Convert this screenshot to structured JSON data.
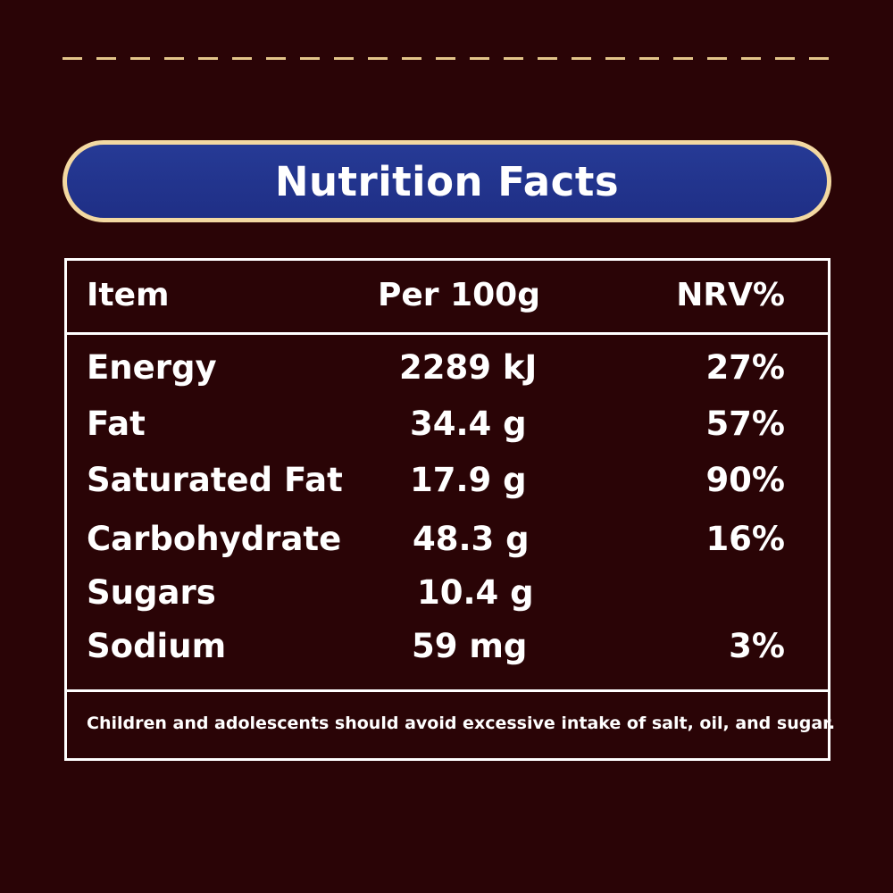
{
  "title": "Nutrition Facts",
  "table": {
    "headers": {
      "item": "Item",
      "per": "Per 100g",
      "nrv": "NRV%"
    },
    "rows": [
      {
        "item": "Energy",
        "per": "2289 kJ",
        "nrv": "27%"
      },
      {
        "item": "Fat",
        "per": "34.4 g",
        "nrv": "57%"
      },
      {
        "item": "Saturated Fat",
        "per": "17.9 g",
        "nrv": "90%"
      },
      {
        "item": "Carbohydrate",
        "per": "48.3 g",
        "nrv": "16%"
      },
      {
        "item": "Sugars",
        "per": "10.4 g",
        "nrv": ""
      },
      {
        "item": "Sodium",
        "per": "59 mg",
        "nrv": "3%"
      }
    ]
  },
  "footer": "Children and adolescents should avoid excessive intake of salt, oil, and sugar.",
  "colors": {
    "background": "#2a0406",
    "pill_fill": "#1f2f86",
    "pill_border": "#f3d9a2",
    "dash": "#e3c58a",
    "text": "#ffffff"
  }
}
